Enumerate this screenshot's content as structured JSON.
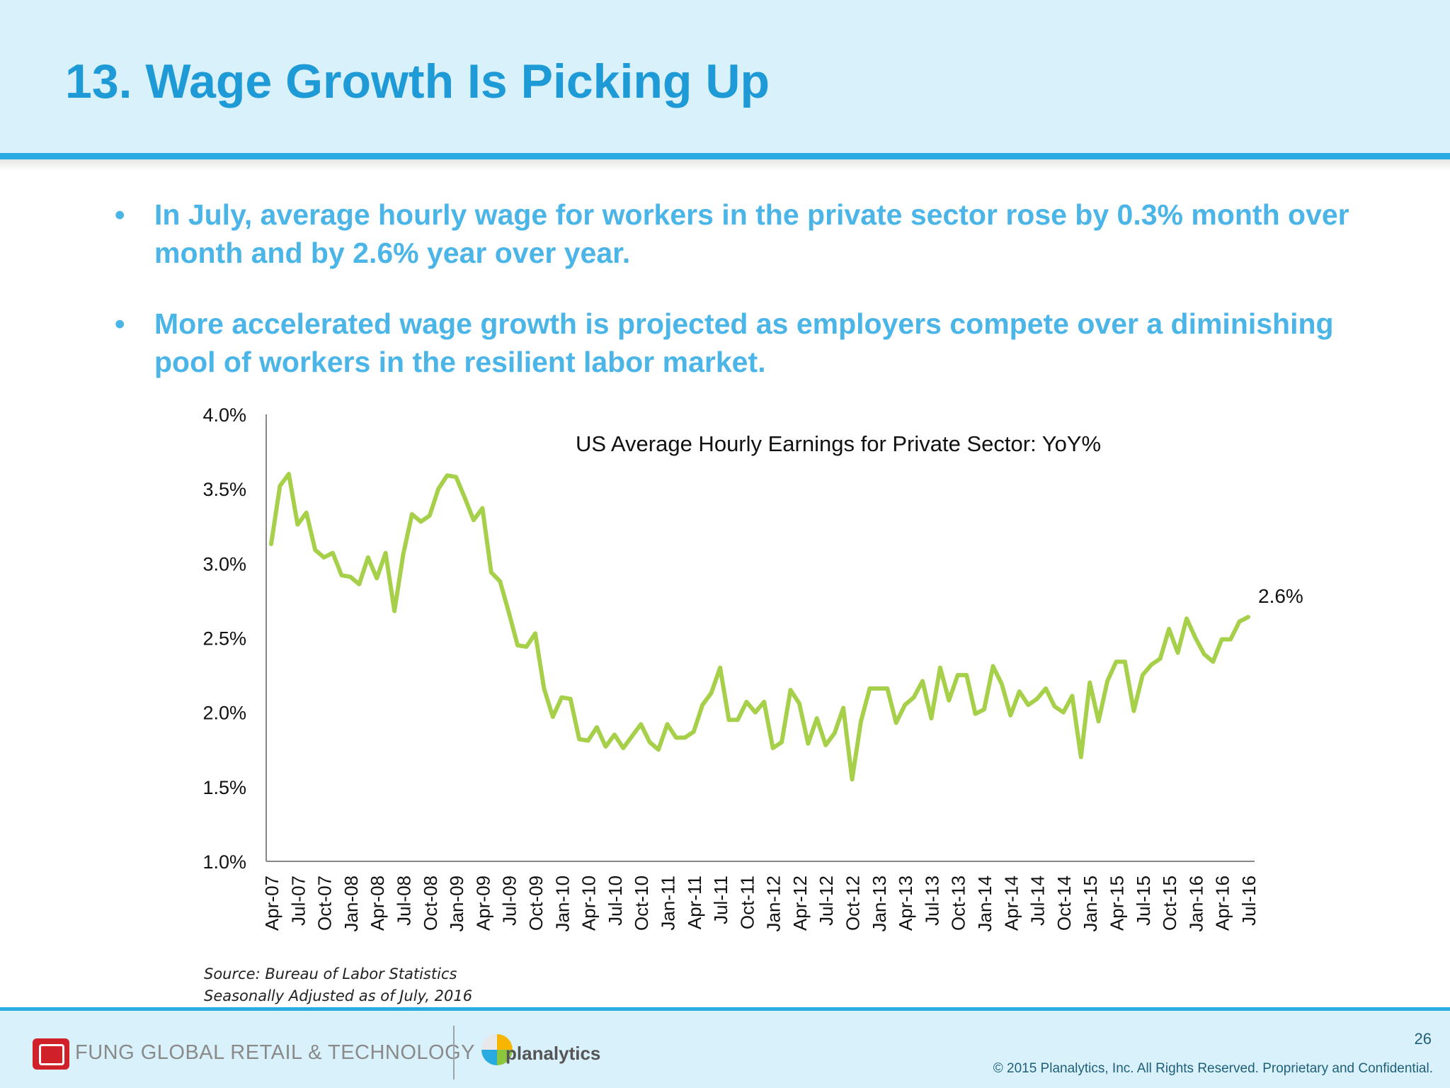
{
  "header": {
    "title": "13. Wage Growth Is Picking Up"
  },
  "bullets": [
    {
      "marker": "•",
      "text": "In July, average hourly wage for workers in the private sector rose by 0.3% month over month and by 2.6% year over year."
    },
    {
      "marker": "•",
      "text": "More accelerated wage growth is projected as employers compete over a diminishing pool of workers in the resilient labor market."
    }
  ],
  "chart_data": {
    "type": "line",
    "title": "US Average Hourly Earnings for Private Sector: YoY%",
    "xlabel": "",
    "ylabel": "",
    "ylim": [
      1.0,
      4.0
    ],
    "yticks": [
      "4.0%",
      "3.5%",
      "3.0%",
      "2.5%",
      "2.0%",
      "1.5%",
      "1.0%"
    ],
    "ytick_values": [
      4.0,
      3.5,
      3.0,
      2.5,
      2.0,
      1.5,
      1.0
    ],
    "xticks": [
      "Apr-07",
      "Jul-07",
      "Oct-07",
      "Jan-08",
      "Apr-08",
      "Jul-08",
      "Oct-08",
      "Jan-09",
      "Apr-09",
      "Jul-09",
      "Oct-09",
      "Jan-10",
      "Apr-10",
      "Jul-10",
      "Oct-10",
      "Jan-11",
      "Apr-11",
      "Jul-11",
      "Oct-11",
      "Jan-12",
      "Apr-12",
      "Jul-12",
      "Oct-12",
      "Jan-13",
      "Apr-13",
      "Jul-13",
      "Oct-13",
      "Jan-14",
      "Apr-14",
      "Jul-14",
      "Oct-14",
      "Jan-15",
      "Apr-15",
      "Jul-15",
      "Oct-15",
      "Jan-16",
      "Apr-16",
      "Jul-16"
    ],
    "grid": false,
    "legend": "none",
    "line_color": "#a6d04a",
    "series": [
      {
        "name": "US Average Hourly Earnings for Private Sector: YoY%",
        "values": [
          3.13,
          3.52,
          3.6,
          3.26,
          3.34,
          3.09,
          3.04,
          3.07,
          2.92,
          2.91,
          2.86,
          3.04,
          2.9,
          3.07,
          2.68,
          3.06,
          3.33,
          3.28,
          3.32,
          3.5,
          3.59,
          3.58,
          3.44,
          3.29,
          3.37,
          2.94,
          2.88,
          2.67,
          2.45,
          2.44,
          2.53,
          2.16,
          1.97,
          2.1,
          2.09,
          1.82,
          1.81,
          1.9,
          1.77,
          1.85,
          1.76,
          1.84,
          1.92,
          1.8,
          1.75,
          1.92,
          1.83,
          1.83,
          1.87,
          2.05,
          2.13,
          2.3,
          1.95,
          1.95,
          2.07,
          2.0,
          2.07,
          1.76,
          1.8,
          2.15,
          2.06,
          1.79,
          1.96,
          1.78,
          1.86,
          2.03,
          1.55,
          1.94,
          2.16,
          2.16,
          2.16,
          1.93,
          2.05,
          2.1,
          2.21,
          1.96,
          2.3,
          2.08,
          2.25,
          2.25,
          1.99,
          2.02,
          2.31,
          2.19,
          1.98,
          2.14,
          2.05,
          2.09,
          2.16,
          2.04,
          2.0,
          2.11,
          1.7,
          2.2,
          1.94,
          2.21,
          2.34,
          2.34,
          2.01,
          2.25,
          2.32,
          2.36,
          2.56,
          2.4,
          2.63,
          2.5,
          2.39,
          2.34,
          2.49,
          2.49,
          2.61,
          2.64
        ]
      }
    ],
    "annotations": [
      {
        "text": "2.6%",
        "value": 2.64,
        "x_label": "Jul-16"
      }
    ]
  },
  "source": {
    "line1": "Source: Bureau of Labor  Statistics",
    "line2": "Seasonally Adjusted as of July, 2016"
  },
  "footer": {
    "company": "FUNG GLOBAL RETAIL & TECHNOLOGY",
    "partner": "planalytics",
    "page_number": "26",
    "copyright": "© 2015 Planalytics, Inc. All Rights Reserved. Proprietary and Confidential."
  }
}
